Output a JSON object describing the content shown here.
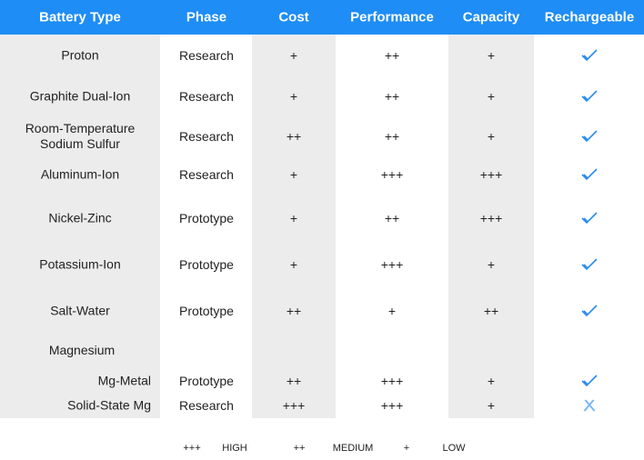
{
  "header": {
    "columns": [
      "Battery Type",
      "Phase",
      "Cost",
      "Performance",
      "Capacity",
      "Rechargeable"
    ]
  },
  "table": {
    "rows": [
      {
        "name": "Proton",
        "phase": "Research",
        "cost": "+",
        "performance": "++",
        "capacity": "+",
        "rechargeable": true
      },
      {
        "name": "Graphite Dual-Ion",
        "phase": "Research",
        "cost": "+",
        "performance": "++",
        "capacity": "+",
        "rechargeable": true
      },
      {
        "name": "Room-Temperature Sodium Sulfur",
        "phase": "Research",
        "cost": "++",
        "performance": "++",
        "capacity": "+",
        "rechargeable": true
      },
      {
        "name": "Aluminum-Ion",
        "phase": "Research",
        "cost": "+",
        "performance": "+++",
        "capacity": "+++",
        "rechargeable": true
      },
      {
        "name": "Nickel-Zinc",
        "phase": "Prototype",
        "cost": "+",
        "performance": "++",
        "capacity": "+++",
        "rechargeable": true
      },
      {
        "name": "Potassium-Ion",
        "phase": "Prototype",
        "cost": "+",
        "performance": "+++",
        "capacity": "+",
        "rechargeable": true
      },
      {
        "name": "Salt-Water",
        "phase": "Prototype",
        "cost": "++",
        "performance": "+",
        "capacity": "++",
        "rechargeable": true
      },
      {
        "name": "Magnesium",
        "children": [
          {
            "name": "Mg-Metal",
            "phase": "Prototype",
            "cost": "++",
            "performance": "+++",
            "capacity": "+",
            "rechargeable": true
          },
          {
            "name": "Solid-State Mg",
            "phase": "Research",
            "cost": "+++",
            "performance": "+++",
            "capacity": "+",
            "rechargeable": false
          }
        ]
      }
    ]
  },
  "legend": [
    {
      "symbol": "+++",
      "label": "HIGH"
    },
    {
      "symbol": "++",
      "label": "MEDIUM"
    },
    {
      "symbol": "+",
      "label": "LOW"
    }
  ]
}
